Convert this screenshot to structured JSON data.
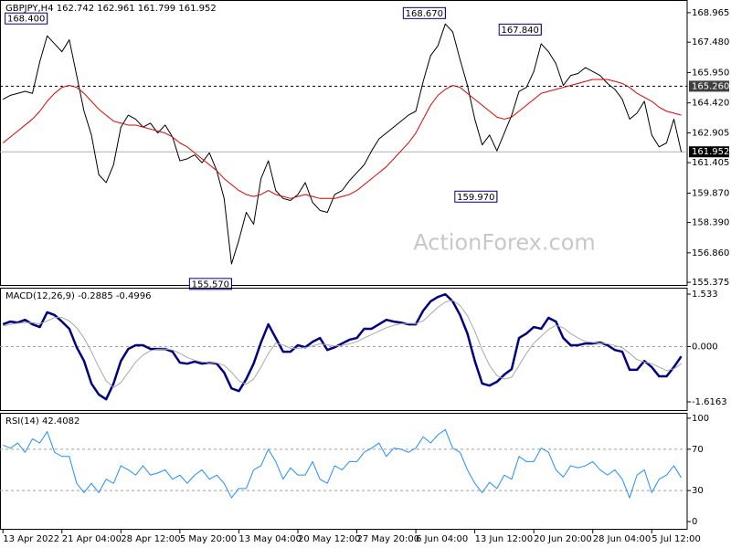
{
  "chart_data": [
    {
      "type": "line",
      "title": "GBPJPY,H4  162.742 162.961 161.799 161.952",
      "watermark": "ActionForex.com",
      "x": [
        0,
        1,
        2,
        3,
        4,
        5,
        6,
        7,
        8,
        9,
        10,
        11,
        12,
        13,
        14,
        15,
        16,
        17,
        18,
        19,
        20,
        21,
        22,
        23,
        24,
        25,
        26,
        27,
        28,
        29,
        30,
        31,
        32,
        33,
        34,
        35,
        36,
        37,
        38,
        39,
        40,
        41,
        42,
        43,
        44,
        45,
        46,
        47,
        48,
        49,
        50,
        51,
        52,
        53,
        54,
        55,
        56,
        57,
        58,
        59,
        60,
        61,
        62,
        63,
        64,
        65,
        66,
        67,
        68,
        69,
        70,
        71,
        72,
        73,
        74,
        75,
        76,
        77,
        78,
        79,
        80,
        81,
        82,
        83,
        84,
        85,
        86,
        87,
        88,
        89,
        90,
        91,
        92
      ],
      "xlim": [
        -0.4,
        92.8
      ],
      "ylim": [
        155.24,
        169.56
      ],
      "yticks": [
        168.965,
        {
          "value": 167.48,
          "label": "167.480"
        },
        {
          "value": 165.95,
          "label": "165.950"
        },
        {
          "value": 164.42,
          "label": "164.420"
        },
        162.905,
        161.405,
        {
          "value": 159.87,
          "label": "159.870"
        },
        {
          "value": 158.39,
          "label": "158.390"
        },
        {
          "value": 156.86,
          "label": "156.860"
        },
        155.375
      ],
      "series": [
        {
          "color": "#000000",
          "width": 1,
          "values": [
            164.6,
            164.8,
            164.9,
            165.0,
            164.9,
            166.5,
            167.8,
            167.4,
            167.0,
            167.6,
            165.8,
            164.0,
            162.8,
            160.8,
            160.4,
            161.3,
            163.2,
            163.8,
            163.6,
            163.2,
            163.4,
            162.9,
            163.3,
            162.7,
            161.5,
            161.6,
            161.8,
            161.4,
            161.9,
            161.0,
            159.6,
            156.3,
            157.5,
            158.9,
            158.3,
            160.6,
            161.5,
            160.0,
            159.6,
            159.5,
            159.8,
            160.4,
            159.4,
            159.0,
            158.9,
            159.8,
            160.0,
            160.5,
            160.9,
            161.3,
            162.0,
            162.6,
            162.9,
            163.2,
            163.5,
            163.8,
            164.0,
            165.5,
            166.8,
            167.3,
            168.4,
            168.0,
            166.6,
            165.3,
            163.6,
            162.3,
            162.8,
            162.0,
            162.9,
            163.8,
            165.0,
            165.2,
            166.0,
            167.4,
            167.0,
            166.4,
            165.3,
            165.8,
            165.9,
            166.2,
            166.0,
            165.8,
            165.4,
            165.1,
            164.6,
            163.6,
            163.9,
            164.5,
            162.8,
            162.2,
            162.4,
            163.6,
            161.952
          ]
        },
        {
          "color": "#e00000",
          "width": 1,
          "values": [
            162.4,
            162.7,
            163.0,
            163.3,
            163.6,
            164.0,
            164.5,
            164.9,
            165.2,
            165.3,
            165.2,
            164.9,
            164.5,
            164.1,
            163.8,
            163.5,
            163.4,
            163.3,
            163.3,
            163.2,
            163.1,
            163.0,
            162.9,
            162.7,
            162.4,
            162.2,
            161.9,
            161.6,
            161.3,
            161.0,
            160.6,
            160.3,
            160.0,
            159.8,
            159.7,
            159.8,
            160.0,
            159.8,
            159.7,
            159.6,
            159.7,
            159.8,
            159.7,
            159.6,
            159.6,
            159.6,
            159.7,
            159.8,
            160.0,
            160.3,
            160.6,
            160.9,
            161.2,
            161.6,
            162.0,
            162.4,
            162.9,
            163.6,
            164.3,
            164.8,
            165.1,
            165.3,
            165.2,
            164.9,
            164.6,
            164.3,
            164.0,
            163.7,
            163.6,
            163.7,
            164.0,
            164.3,
            164.6,
            164.9,
            165.0,
            165.1,
            165.2,
            165.3,
            165.4,
            165.5,
            165.6,
            165.6,
            165.6,
            165.5,
            165.4,
            165.2,
            164.9,
            164.7,
            164.5,
            164.2,
            164.0,
            163.9,
            163.8
          ]
        }
      ],
      "levels": [
        {
          "value": 165.26,
          "label": "165.260",
          "dashed": true,
          "color": "#404040"
        },
        {
          "value": 161.952,
          "label": "161.952",
          "dashed": false,
          "color": "#000000"
        }
      ],
      "annotations": [
        {
          "label": "168.400",
          "value": 168.4,
          "x": 6,
          "kind": "high"
        },
        {
          "label": "168.670",
          "value": 168.67,
          "x": 60,
          "kind": "high"
        },
        {
          "label": "167.840",
          "value": 167.84,
          "x": 73,
          "kind": "high"
        },
        {
          "label": "159.970",
          "value": 159.97,
          "x": 67,
          "kind": "low"
        },
        {
          "label": "155.570",
          "value": 155.57,
          "x": 31,
          "kind": "low"
        }
      ]
    },
    {
      "type": "line",
      "title": "MACD(12,26,9) -0.2885 -0.4996",
      "x": [
        0,
        1,
        2,
        3,
        4,
        5,
        6,
        7,
        8,
        9,
        10,
        11,
        12,
        13,
        14,
        15,
        16,
        17,
        18,
        19,
        20,
        21,
        22,
        23,
        24,
        25,
        26,
        27,
        28,
        29,
        30,
        31,
        32,
        33,
        34,
        35,
        36,
        37,
        38,
        39,
        40,
        41,
        42,
        43,
        44,
        45,
        46,
        47,
        48,
        49,
        50,
        51,
        52,
        53,
        54,
        55,
        56,
        57,
        58,
        59,
        60,
        61,
        62,
        63,
        64,
        65,
        66,
        67,
        68,
        69,
        70,
        71,
        72,
        73,
        74,
        75,
        76,
        77,
        78,
        79,
        80,
        81,
        82,
        83,
        84,
        85,
        86,
        87,
        88,
        89,
        90,
        91,
        92
      ],
      "xlim": [
        -0.4,
        92.8
      ],
      "ylim": [
        -1.856,
        1.693
      ],
      "yticks": [
        1.533,
        {
          "value": 0,
          "label": "0.000"
        },
        -1.6163
      ],
      "grid_values": [
        0
      ],
      "series": [
        {
          "color": "#000080",
          "width": 2.5,
          "values": [
            0.65,
            0.73,
            0.7,
            0.78,
            0.65,
            0.57,
            1.0,
            0.92,
            0.73,
            0.52,
            -0.02,
            -0.42,
            -1.08,
            -1.4,
            -1.54,
            -1.08,
            -0.42,
            -0.07,
            0.04,
            0.04,
            -0.07,
            -0.07,
            -0.07,
            -0.15,
            -0.47,
            -0.5,
            -0.44,
            -0.5,
            -0.47,
            -0.5,
            -0.76,
            -1.22,
            -1.3,
            -0.95,
            -0.5,
            0.12,
            0.65,
            0.25,
            -0.15,
            -0.15,
            0.04,
            -0.02,
            0.14,
            0.25,
            -0.1,
            -0.02,
            0.09,
            0.2,
            0.25,
            0.52,
            0.52,
            0.65,
            0.78,
            0.73,
            0.7,
            0.65,
            0.65,
            1.05,
            1.32,
            1.45,
            1.53,
            1.32,
            0.92,
            0.38,
            -0.42,
            -1.08,
            -1.14,
            -1.03,
            -0.82,
            -0.66,
            0.25,
            0.38,
            0.57,
            0.52,
            0.84,
            0.73,
            0.25,
            0.04,
            0.04,
            0.09,
            0.09,
            0.12,
            0.04,
            -0.1,
            -0.15,
            -0.68,
            -0.68,
            -0.42,
            -0.6,
            -0.87,
            -0.87,
            -0.6,
            -0.2885
          ]
        },
        {
          "color": "#a8a8a8",
          "width": 1,
          "values": [
            0.6,
            0.65,
            0.68,
            0.7,
            0.7,
            0.66,
            0.75,
            0.85,
            0.85,
            0.75,
            0.55,
            0.25,
            -0.15,
            -0.6,
            -1.0,
            -1.2,
            -1.05,
            -0.75,
            -0.45,
            -0.25,
            -0.12,
            -0.08,
            -0.07,
            -0.1,
            -0.2,
            -0.32,
            -0.4,
            -0.45,
            -0.47,
            -0.48,
            -0.55,
            -0.75,
            -1.0,
            -1.1,
            -0.95,
            -0.6,
            -0.2,
            0.1,
            0.05,
            -0.05,
            -0.05,
            -0.03,
            0.02,
            0.08,
            0.05,
            0.02,
            0.03,
            0.08,
            0.14,
            0.25,
            0.35,
            0.45,
            0.55,
            0.62,
            0.67,
            0.68,
            0.67,
            0.75,
            0.95,
            1.15,
            1.3,
            1.35,
            1.2,
            0.9,
            0.45,
            -0.1,
            -0.55,
            -0.85,
            -0.95,
            -0.9,
            -0.55,
            -0.2,
            0.1,
            0.3,
            0.5,
            0.62,
            0.55,
            0.38,
            0.25,
            0.15,
            0.12,
            0.1,
            0.08,
            0.03,
            -0.03,
            -0.2,
            -0.38,
            -0.45,
            -0.5,
            -0.6,
            -0.7,
            -0.65,
            -0.4996
          ]
        }
      ]
    },
    {
      "type": "line",
      "title": "RSI(14) 42.4082",
      "x": [
        0,
        1,
        2,
        3,
        4,
        5,
        6,
        7,
        8,
        9,
        10,
        11,
        12,
        13,
        14,
        15,
        16,
        17,
        18,
        19,
        20,
        21,
        22,
        23,
        24,
        25,
        26,
        27,
        28,
        29,
        30,
        31,
        32,
        33,
        34,
        35,
        36,
        37,
        38,
        39,
        40,
        41,
        42,
        43,
        44,
        45,
        46,
        47,
        48,
        49,
        50,
        51,
        52,
        53,
        54,
        55,
        56,
        57,
        58,
        59,
        60,
        61,
        62,
        63,
        64,
        65,
        66,
        67,
        68,
        69,
        70,
        71,
        72,
        73,
        74,
        75,
        76,
        77,
        78,
        79,
        80,
        81,
        82,
        83,
        84,
        85,
        86,
        87,
        88,
        89,
        90,
        91,
        92
      ],
      "xlim": [
        -0.4,
        92.8
      ],
      "ylim": [
        -7,
        104.3
      ],
      "yticks": [
        100,
        70,
        30,
        0
      ],
      "grid_values": [
        70,
        30
      ],
      "xticks": [
        {
          "value": 0,
          "label": "13 Apr 2022"
        },
        {
          "value": 8,
          "label": "21 Apr 04:00"
        },
        {
          "value": 16,
          "label": "28 Apr 12:00"
        },
        {
          "value": 24,
          "label": "5 May 20:00"
        },
        {
          "value": 32,
          "label": "13 May 04:00"
        },
        {
          "value": 40,
          "label": "20 May 12:00"
        },
        {
          "value": 48,
          "label": "27 May 20:00"
        },
        {
          "value": 56,
          "label": "6 Jun 04:00"
        },
        {
          "value": 64,
          "label": "13 Jun 12:00"
        },
        {
          "value": 72,
          "label": "20 Jun 20:00"
        },
        {
          "value": 80,
          "label": "28 Jun 04:00"
        },
        {
          "value": 88,
          "label": "5 Jul 12:00"
        }
      ],
      "series": [
        {
          "color": "#1e90ff",
          "width": 1,
          "values": [
            74,
            71,
            76,
            67,
            80,
            76,
            87,
            67,
            63,
            63,
            37,
            28,
            37,
            28,
            41,
            37,
            54,
            50,
            45,
            54,
            45,
            47,
            50,
            41,
            45,
            37,
            45,
            50,
            41,
            45,
            37,
            23,
            32,
            32,
            50,
            54,
            70,
            58,
            41,
            52,
            45,
            45,
            58,
            41,
            37,
            54,
            50,
            58,
            58,
            67,
            71,
            76,
            63,
            71,
            70,
            67,
            71,
            82,
            76,
            84,
            89,
            71,
            67,
            50,
            37,
            28,
            38,
            32,
            45,
            41,
            63,
            58,
            58,
            71,
            67,
            50,
            43,
            54,
            52,
            54,
            58,
            50,
            45,
            50,
            41,
            23,
            45,
            50,
            28,
            41,
            45,
            54,
            42.4082
          ]
        }
      ]
    }
  ]
}
